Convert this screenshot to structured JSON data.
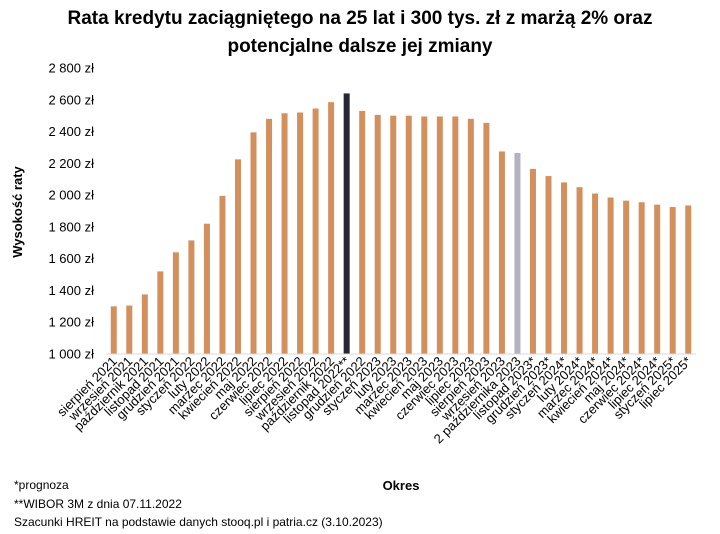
{
  "chart_data": {
    "type": "bar",
    "title_line1": "Rata kredytu zaciągniętego na 25 lat i 300 tys. zł z marżą 2% oraz",
    "title_line2": "potencjalne dalsze jej zmiany",
    "xlabel": "Okres",
    "ylabel": "Wysokość raty",
    "ylim": [
      1000,
      2800
    ],
    "yticks": [
      "1 000 zł",
      "1 200 zł",
      "1 400 zł",
      "1 600 zł",
      "1 800 zł",
      "2 000 zł",
      "2 200 zł",
      "2 400 zł",
      "2 600 zł",
      "2 800 zł"
    ],
    "grid": false,
    "colors": {
      "default": "#d4905c",
      "highlight_dark": "#262732",
      "highlight_light": "#b4b2c2"
    },
    "categories": [
      "sierpień 2021",
      "wrzesień 2021",
      "październik 2021",
      "listopad 2021",
      "grudzień 2021",
      "styczeń 2022",
      "luty 2022",
      "marzec 2022",
      "kwiecień 2022",
      "maj 2022",
      "czerwiec 2022",
      "lipiec 2022",
      "sierpień 2022",
      "wrzesień 2022",
      "październik 2022",
      "listopad 2022**",
      "grudzień 2022",
      "styczeń 2023",
      "luty 2023",
      "marzec 2023",
      "kwiecień 2023",
      "maj 2023",
      "czerwiec 2023",
      "lipiec 2023",
      "sierpień 2023",
      "wrzesień 2023",
      "2 października 2023",
      "listopad 2023*",
      "grudzień 2023*",
      "styczeń 2024*",
      "luty 2024*",
      "marzec 2024*",
      "kwiecień 2024*",
      "maj 2024*",
      "czerwiec 2024*",
      "lipiec 2024*",
      "styczeń 2025*",
      "lipiec 2025*"
    ],
    "values": [
      1300,
      1305,
      1375,
      1520,
      1640,
      1715,
      1820,
      1995,
      2225,
      2395,
      2480,
      2515,
      2520,
      2545,
      2585,
      2640,
      2530,
      2505,
      2500,
      2500,
      2495,
      2495,
      2495,
      2480,
      2455,
      2275,
      2265,
      2165,
      2120,
      2080,
      2050,
      2010,
      1985,
      1965,
      1955,
      1940,
      1925,
      1935
    ],
    "bar_colors": [
      "default",
      "default",
      "default",
      "default",
      "default",
      "default",
      "default",
      "default",
      "default",
      "default",
      "default",
      "default",
      "default",
      "default",
      "default",
      "highlight_dark",
      "default",
      "default",
      "default",
      "default",
      "default",
      "default",
      "default",
      "default",
      "default",
      "default",
      "highlight_light",
      "default",
      "default",
      "default",
      "default",
      "default",
      "default",
      "default",
      "default",
      "default",
      "default",
      "default"
    ]
  },
  "notes": {
    "forecast": "*prognoza",
    "wibor": "**WIBOR 3M z dnia 07.11.2022",
    "source": "Szacunki HREIT na podstawie danych stooq.pl i patria.cz (3.10.2023)"
  }
}
